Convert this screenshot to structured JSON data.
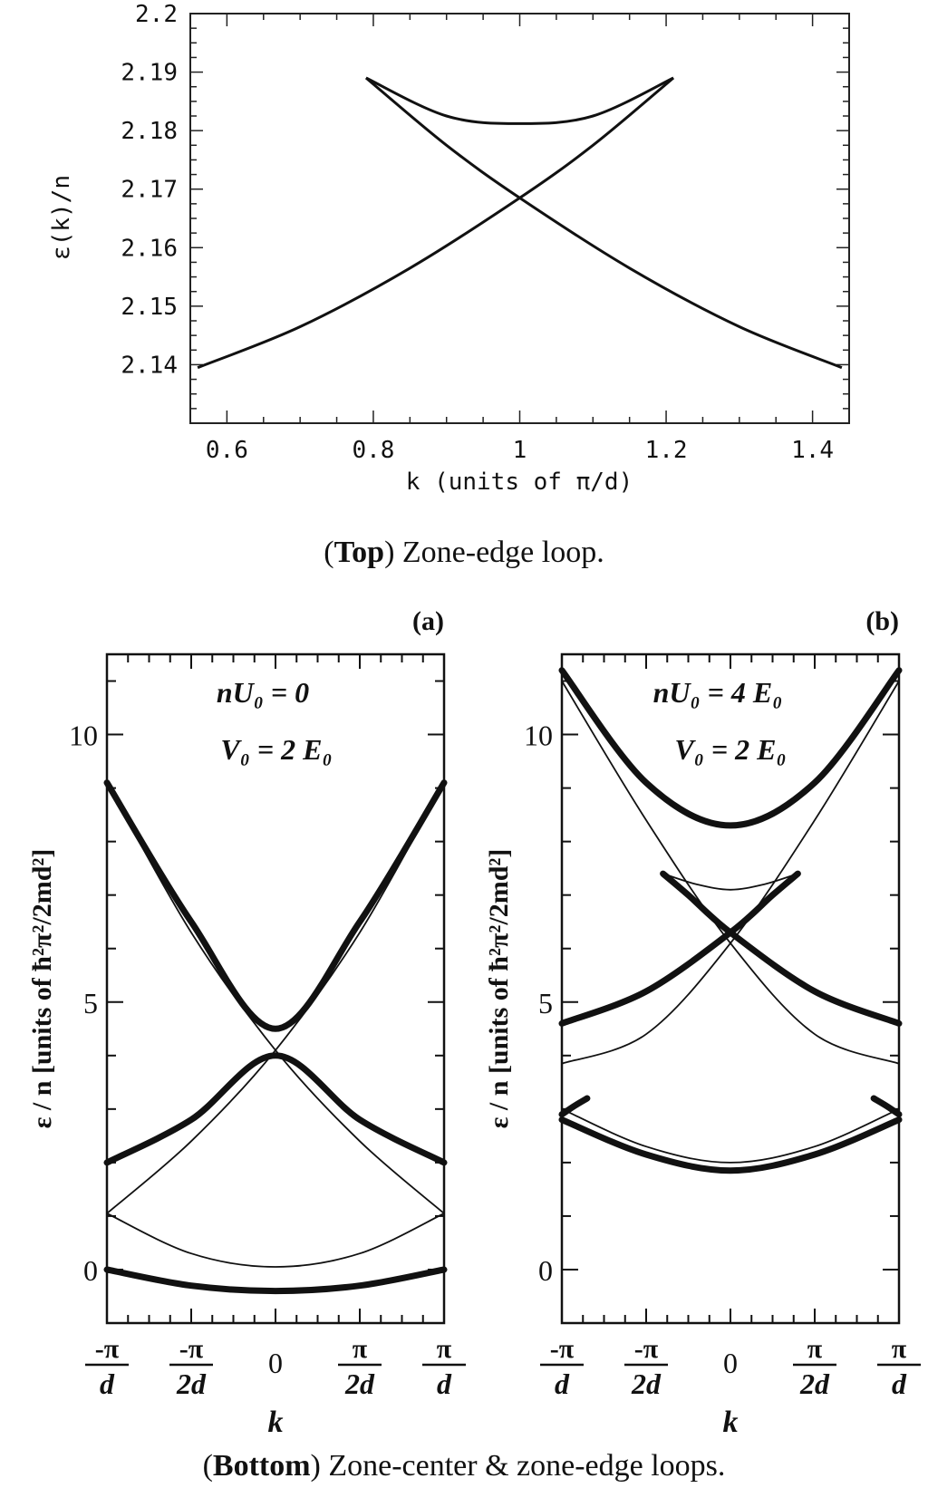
{
  "chart_data": [
    {
      "type": "line",
      "xlabel": "k (units of π/d)",
      "ylabel": "ε(k)/n",
      "xlim": [
        0.55,
        1.45
      ],
      "ylim": [
        2.13,
        2.2
      ],
      "xticks": [
        "0.6",
        "0.8",
        "1",
        "1.2",
        "1.4"
      ],
      "yticks": [
        "2.14",
        "2.15",
        "2.16",
        "2.17",
        "2.18",
        "2.19",
        "2.2"
      ],
      "series": [
        {
          "x": [
            0.56,
            0.7,
            0.85,
            1.0,
            1.1,
            1.21
          ],
          "y": [
            2.1395,
            2.1465,
            2.1565,
            2.1685,
            2.1775,
            2.189
          ]
        },
        {
          "x": [
            0.79,
            0.9,
            1.0,
            1.15,
            1.3,
            1.44
          ],
          "y": [
            2.189,
            2.1775,
            2.1685,
            2.1565,
            2.1465,
            2.1395
          ]
        },
        {
          "x": [
            0.79,
            0.9,
            1.0,
            1.1,
            1.21
          ],
          "y": [
            2.189,
            2.1825,
            2.1812,
            2.1825,
            2.189
          ]
        }
      ],
      "caption_bold": "Top",
      "caption_rest": " Zone-edge loop."
    },
    {
      "type": "line",
      "panel_label": "(a)",
      "annotation": [
        "nU₀ = 0",
        "V₀ = 2 E₀"
      ],
      "xlabel": "k",
      "ylabel": "ε / n [units of ħ²π²/2md²]",
      "xlim": [
        -1,
        1
      ],
      "ylim": [
        -1,
        11.5
      ],
      "xticks": [
        "-π/d",
        "-π/2d",
        "0",
        "π/2d",
        "π/d"
      ],
      "yticks": [
        "0",
        "5",
        "10"
      ],
      "series": [
        {
          "weight": "bold",
          "x": [
            -1,
            -0.5,
            0,
            0.5,
            1
          ],
          "y": [
            0,
            -0.3,
            -0.4,
            -0.3,
            0
          ]
        },
        {
          "weight": "bold",
          "x": [
            -1,
            -0.5,
            0,
            0.5,
            1
          ],
          "y": [
            2,
            2.8,
            4.0,
            2.8,
            2
          ]
        },
        {
          "weight": "bold",
          "x": [
            -1,
            -0.5,
            0,
            0.5,
            1
          ],
          "y": [
            9.1,
            6.5,
            4.5,
            6.5,
            9.1
          ]
        },
        {
          "weight": "thin",
          "x": [
            -1,
            -0.5,
            0,
            0.5,
            1
          ],
          "y": [
            1.05,
            0.3,
            0.05,
            0.3,
            1.05
          ]
        },
        {
          "weight": "thin",
          "x": [
            -1,
            -0.5,
            0,
            0.5,
            1
          ],
          "y": [
            1.05,
            2.4,
            4.1,
            6.3,
            9.1
          ]
        },
        {
          "weight": "thin",
          "x": [
            -1,
            -0.5,
            0,
            0.5,
            1
          ],
          "y": [
            9.1,
            6.3,
            4.1,
            2.4,
            1.05
          ]
        }
      ]
    },
    {
      "type": "line",
      "panel_label": "(b)",
      "annotation": [
        "nU₀ = 4 E₀",
        "V₀ = 2 E₀"
      ],
      "xlabel": "k",
      "ylabel": "ε / n [units of ħ²π²/2md²]",
      "xlim": [
        -1,
        1
      ],
      "ylim": [
        -1,
        11.5
      ],
      "xticks": [
        "-π/d",
        "-π/2d",
        "0",
        "π/2d",
        "π/d"
      ],
      "yticks": [
        "0",
        "5",
        "10"
      ],
      "series": [
        {
          "weight": "bold",
          "x": [
            -1,
            -0.5,
            0,
            0.5,
            1
          ],
          "y": [
            2.8,
            2.15,
            1.85,
            2.15,
            2.8
          ]
        },
        {
          "weight": "bold",
          "x": [
            -1,
            -0.93,
            -0.85
          ],
          "y": [
            2.9,
            3.05,
            3.2
          ]
        },
        {
          "weight": "bold",
          "x": [
            0.85,
            0.93,
            1
          ],
          "y": [
            3.2,
            3.05,
            2.9
          ]
        },
        {
          "weight": "bold",
          "x": [
            -1,
            -0.5,
            0,
            0.25,
            0.4
          ],
          "y": [
            4.6,
            5.2,
            6.3,
            7.0,
            7.4
          ]
        },
        {
          "weight": "bold",
          "x": [
            -0.4,
            -0.25,
            0,
            0.5,
            1
          ],
          "y": [
            7.4,
            7.0,
            6.3,
            5.2,
            4.6
          ]
        },
        {
          "weight": "bold",
          "x": [
            -1,
            -0.5,
            0,
            0.5,
            1
          ],
          "y": [
            11.2,
            9.1,
            8.3,
            9.1,
            11.2
          ]
        },
        {
          "weight": "thin",
          "x": [
            -1,
            -0.5,
            0,
            0.5,
            1
          ],
          "y": [
            3.0,
            2.3,
            2.0,
            2.3,
            3.0
          ]
        },
        {
          "weight": "thin",
          "x": [
            -1,
            -0.5,
            0,
            0.5,
            1
          ],
          "y": [
            3.85,
            4.4,
            6.1,
            8.4,
            11.0
          ]
        },
        {
          "weight": "thin",
          "x": [
            -1,
            -0.5,
            0,
            0.5,
            1
          ],
          "y": [
            11.0,
            8.4,
            6.1,
            4.4,
            3.85
          ]
        },
        {
          "weight": "thin",
          "x": [
            -0.4,
            -0.2,
            0,
            0.2,
            0.4
          ],
          "y": [
            7.4,
            7.2,
            7.1,
            7.2,
            7.4
          ]
        }
      ],
      "caption_bold": "Bottom",
      "caption_rest": " Zone-center & zone-edge loops."
    }
  ]
}
